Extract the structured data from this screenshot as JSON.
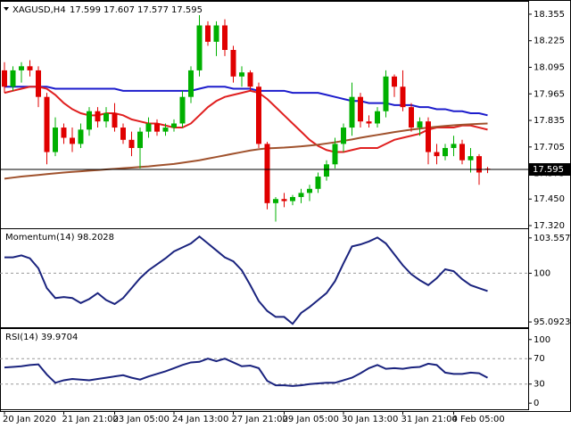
{
  "chart_data": [
    {
      "type": "candlestick",
      "title": "XAGUSD,H4",
      "ohlc": [
        17.599,
        17.607,
        17.577,
        17.595
      ],
      "last_price": 17.595,
      "up_color": "#00b000",
      "down_color": "#e00000",
      "categories": [
        "20 Jan 2020",
        null,
        null,
        null,
        null,
        null,
        null,
        "21 Jan 21:00",
        null,
        null,
        null,
        null,
        null,
        "23 Jan 05:00",
        null,
        null,
        null,
        null,
        null,
        null,
        "24 Jan 13:00",
        null,
        null,
        null,
        null,
        null,
        null,
        "27 Jan 21:00",
        null,
        null,
        null,
        null,
        null,
        "29 Jan 05:00",
        null,
        null,
        null,
        null,
        null,
        null,
        "30 Jan 13:00",
        null,
        null,
        null,
        null,
        null,
        null,
        "31 Jan 21:00",
        null,
        null,
        null,
        null,
        null,
        "4 Feb 05:00",
        null,
        null,
        null,
        null
      ],
      "open": [
        18.08,
        18.0,
        18.08,
        18.1,
        18.08,
        17.95,
        17.68,
        17.8,
        17.75,
        17.72,
        17.79,
        17.88,
        17.83,
        17.87,
        17.8,
        17.74,
        17.7,
        17.78,
        17.82,
        17.78,
        17.8,
        17.82,
        17.95,
        18.08,
        18.3,
        18.22,
        18.3,
        18.18,
        18.05,
        18.07,
        18.0,
        17.72,
        17.43,
        17.45,
        17.44,
        17.46,
        17.48,
        17.5,
        17.56,
        17.62,
        17.72,
        17.8,
        17.95,
        17.83,
        17.82,
        17.88,
        18.05,
        18.0,
        17.9,
        17.8,
        17.83,
        17.68,
        17.66,
        17.7,
        17.72,
        17.64,
        17.66,
        17.599
      ],
      "high": [
        18.12,
        18.1,
        18.12,
        18.13,
        18.1,
        17.97,
        17.85,
        17.82,
        17.8,
        17.82,
        17.9,
        17.9,
        17.9,
        17.92,
        17.82,
        17.78,
        17.8,
        17.85,
        17.84,
        17.82,
        17.84,
        17.98,
        18.1,
        18.35,
        18.32,
        18.32,
        18.33,
        18.2,
        18.1,
        18.08,
        18.02,
        17.73,
        17.46,
        17.48,
        17.47,
        17.5,
        17.52,
        17.58,
        17.64,
        17.75,
        17.82,
        18.02,
        17.97,
        17.86,
        17.9,
        18.08,
        18.06,
        18.08,
        17.92,
        17.85,
        17.85,
        17.72,
        17.72,
        17.76,
        17.74,
        17.7,
        17.67,
        17.607
      ],
      "low": [
        17.97,
        17.98,
        18.02,
        18.05,
        17.9,
        17.62,
        17.66,
        17.72,
        17.68,
        17.7,
        17.76,
        17.8,
        17.8,
        17.78,
        17.72,
        17.66,
        17.6,
        17.75,
        17.76,
        17.76,
        17.78,
        17.8,
        17.92,
        18.05,
        18.2,
        18.15,
        18.15,
        18.02,
        18.0,
        17.98,
        17.7,
        17.4,
        17.34,
        17.41,
        17.42,
        17.43,
        17.44,
        17.48,
        17.54,
        17.6,
        17.68,
        17.76,
        17.8,
        17.8,
        17.8,
        17.85,
        17.95,
        17.88,
        17.78,
        17.76,
        17.62,
        17.62,
        17.64,
        17.66,
        17.62,
        17.58,
        17.52,
        17.577
      ],
      "close": [
        18.0,
        18.08,
        18.1,
        18.08,
        17.95,
        17.68,
        17.8,
        17.75,
        17.72,
        17.79,
        17.88,
        17.83,
        17.87,
        17.8,
        17.74,
        17.7,
        17.78,
        17.82,
        17.78,
        17.8,
        17.82,
        17.95,
        18.08,
        18.3,
        18.22,
        18.3,
        18.18,
        18.05,
        18.07,
        18.0,
        17.72,
        17.43,
        17.45,
        17.44,
        17.46,
        17.48,
        17.5,
        17.56,
        17.62,
        17.72,
        17.8,
        17.95,
        17.83,
        17.82,
        17.88,
        18.05,
        18.0,
        17.9,
        17.8,
        17.83,
        17.68,
        17.66,
        17.7,
        17.72,
        17.64,
        17.66,
        17.58,
        17.595
      ],
      "overlays": [
        {
          "color": "#1c1ccc",
          "values": [
            18.0,
            18.0,
            18.0,
            18.0,
            18.0,
            18.0,
            17.99,
            17.99,
            17.99,
            17.99,
            17.99,
            17.99,
            17.99,
            17.99,
            17.98,
            17.98,
            17.98,
            17.98,
            17.98,
            17.98,
            17.98,
            17.98,
            17.98,
            17.99,
            18.0,
            18.0,
            18.0,
            17.99,
            17.99,
            17.99,
            17.98,
            17.98,
            17.98,
            17.98,
            17.97,
            17.97,
            17.97,
            17.97,
            17.96,
            17.95,
            17.94,
            17.93,
            17.93,
            17.92,
            17.92,
            17.92,
            17.91,
            17.91,
            17.91,
            17.9,
            17.9,
            17.89,
            17.89,
            17.88,
            17.88,
            17.87,
            17.87,
            17.86
          ]
        },
        {
          "color": "#e02020",
          "values": [
            17.97,
            17.98,
            17.99,
            18.0,
            18.0,
            17.99,
            17.96,
            17.92,
            17.89,
            17.87,
            17.86,
            17.86,
            17.87,
            17.87,
            17.86,
            17.84,
            17.83,
            17.82,
            17.82,
            17.81,
            17.8,
            17.8,
            17.82,
            17.86,
            17.9,
            17.93,
            17.95,
            17.96,
            17.97,
            17.98,
            17.97,
            17.94,
            17.9,
            17.86,
            17.82,
            17.78,
            17.74,
            17.71,
            17.69,
            17.68,
            17.68,
            17.69,
            17.7,
            17.7,
            17.7,
            17.72,
            17.74,
            17.75,
            17.76,
            17.77,
            17.79,
            17.8,
            17.8,
            17.8,
            17.81,
            17.81,
            17.8,
            17.79
          ]
        },
        {
          "color": "#a0522d",
          "values": [
            17.55,
            17.555,
            17.56,
            17.564,
            17.568,
            17.572,
            17.576,
            17.58,
            17.583,
            17.586,
            17.589,
            17.592,
            17.595,
            17.598,
            17.601,
            17.604,
            17.607,
            17.61,
            17.614,
            17.618,
            17.622,
            17.628,
            17.634,
            17.64,
            17.648,
            17.656,
            17.664,
            17.672,
            17.68,
            17.688,
            17.694,
            17.698,
            17.7,
            17.702,
            17.705,
            17.708,
            17.712,
            17.716,
            17.722,
            17.728,
            17.735,
            17.742,
            17.75,
            17.757,
            17.764,
            17.771,
            17.778,
            17.784,
            17.79,
            17.795,
            17.8,
            17.804,
            17.808,
            17.811,
            17.814,
            17.816,
            17.818,
            17.82
          ]
        }
      ],
      "ylim": [
        17.307,
        18.407
      ],
      "yticks": [
        18.355,
        18.225,
        18.095,
        17.965,
        17.835,
        17.705,
        17.575,
        {
          "value": 17.45,
          "label": "17.450"
        },
        {
          "value": 17.32,
          "label": "17.320"
        }
      ]
    },
    {
      "type": "line",
      "title": "Momentum(14) 98.2028",
      "color": "#1a237e",
      "values": [
        101.6,
        101.6,
        101.8,
        101.5,
        100.5,
        98.5,
        97.5,
        97.6,
        97.5,
        97.0,
        97.4,
        98.0,
        97.3,
        96.9,
        97.5,
        98.5,
        99.5,
        100.3,
        100.9,
        101.5,
        102.2,
        102.6,
        103.0,
        103.7,
        103.0,
        102.3,
        101.6,
        101.2,
        100.3,
        98.8,
        97.2,
        96.2,
        95.6,
        95.6,
        94.9,
        96.0,
        96.6,
        97.3,
        98.0,
        99.2,
        101.0,
        102.7,
        102.9,
        103.2,
        103.6,
        103.0,
        101.9,
        100.8,
        99.9,
        99.3,
        98.8,
        99.5,
        100.4,
        100.2,
        99.4,
        98.8,
        98.5,
        98.2028
      ],
      "levels": [
        100
      ],
      "ylim": [
        94.56,
        104.26
      ],
      "yticks": [
        103.5577,
        100,
        95.0923
      ]
    },
    {
      "type": "line",
      "title": "RSI(14) 39.9704",
      "color": "#1a237e",
      "values": [
        56,
        57,
        58,
        60,
        61,
        45,
        32,
        36,
        38,
        37,
        36,
        38,
        40,
        42,
        44,
        40,
        37,
        42,
        46,
        50,
        55,
        60,
        64,
        65,
        70,
        66,
        70,
        64,
        58,
        59,
        55,
        35,
        28,
        28,
        27,
        28,
        30,
        31,
        32,
        32,
        36,
        40,
        47,
        55,
        60,
        54,
        55,
        54,
        56,
        57,
        62,
        60,
        48,
        46,
        46,
        48,
        47,
        39.9704
      ],
      "levels": [
        70,
        30
      ],
      "ylim": [
        -9.6,
        113.7
      ],
      "yticks": [
        100,
        70,
        30,
        0
      ]
    }
  ]
}
